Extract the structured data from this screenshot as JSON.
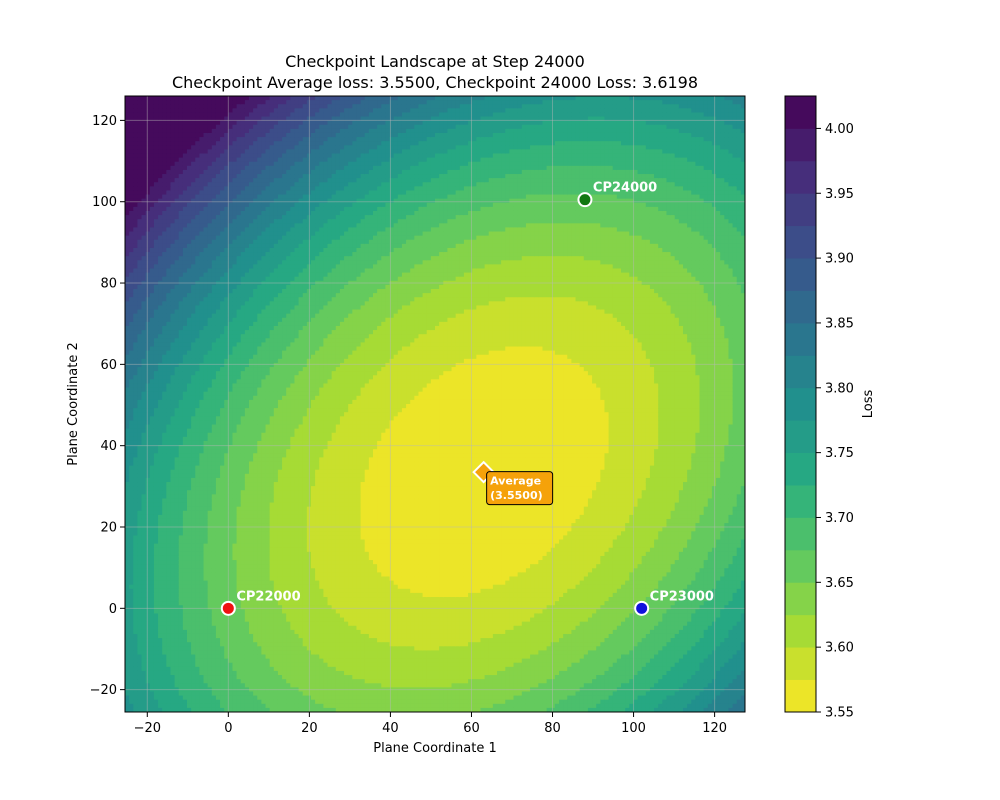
{
  "chart_data": {
    "type": "contour",
    "title": "Checkpoint Landscape at Step 24000",
    "subtitle": "Checkpoint Average loss: 3.5500, Checkpoint 24000 Loss: 3.6198",
    "xlabel": "Plane Coordinate 1",
    "ylabel": "Plane Coordinate 2",
    "xlim": [
      -25.5,
      127.5
    ],
    "ylim": [
      -25.5,
      126
    ],
    "xticks": [
      -20,
      0,
      20,
      40,
      60,
      80,
      100,
      120
    ],
    "yticks": [
      -20,
      0,
      20,
      40,
      60,
      80,
      100,
      120
    ],
    "grid": true,
    "colorbar": {
      "label": "Loss",
      "min": 3.55,
      "max": 4.025,
      "ticks": [
        3.55,
        3.6,
        3.65,
        3.7,
        3.75,
        3.8,
        3.85,
        3.9,
        3.95,
        4.0
      ],
      "tick_labels": [
        "3.55",
        "3.60",
        "3.65",
        "3.70",
        "3.75",
        "3.80",
        "3.85",
        "3.90",
        "3.95",
        "4.00"
      ],
      "level_step": 0.025,
      "colormap": "viridis_r"
    },
    "surface": {
      "center": [
        63,
        33.5
      ],
      "min_loss": 3.55,
      "quadratic_coeffs": {
        "xx": 2.95e-05,
        "yy": 2.95e-05,
        "xy": -1.9e-05
      }
    },
    "points": [
      {
        "label": "CP22000",
        "x": 0,
        "y": 0,
        "color": "#ee1111"
      },
      {
        "label": "CP23000",
        "x": 102,
        "y": 0,
        "color": "#1111dd"
      },
      {
        "label": "CP24000",
        "x": 88,
        "y": 100.5,
        "color": "#117711"
      }
    ],
    "average": {
      "label_line1": "Average",
      "label_line2": "(3.5500)",
      "x": 63,
      "y": 33.5,
      "color": "#f5a20a"
    }
  }
}
